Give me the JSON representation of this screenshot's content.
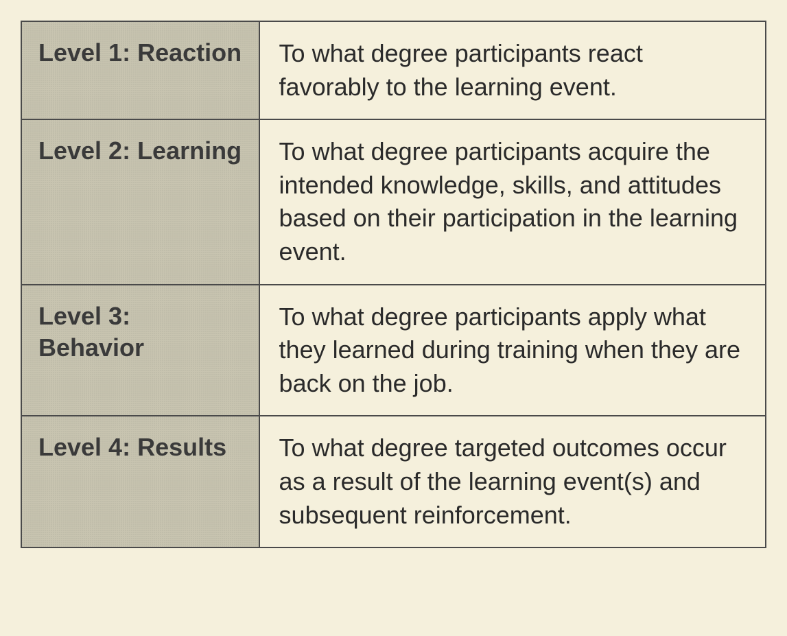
{
  "table": {
    "columns": [
      "level",
      "description"
    ],
    "header_bg_color": "#c8c4b0",
    "content_bg_color": "#f5f0dc",
    "border_color": "#4a4a4a",
    "text_color": "#2a2a2a",
    "header_text_color": "#3a3a3a",
    "font_size": 36,
    "header_font_weight": "bold",
    "header_width_pct": 32,
    "content_width_pct": 68,
    "rows": [
      {
        "level": "Level 1: Reaction",
        "description": "To what degree participants react favorably to the learning event."
      },
      {
        "level": "Level 2: Learning",
        "description": "To what degree participants acquire the intended knowledge, skills, and attitudes based on their participation in the learning event."
      },
      {
        "level": "Level 3: Behavior",
        "description": "To what degree participants apply what they learned during training when they are back on the job."
      },
      {
        "level": "Level 4: Results",
        "description": "To what degree targeted outcomes occur as a result of the learning event(s) and subsequent reinforcement."
      }
    ]
  }
}
